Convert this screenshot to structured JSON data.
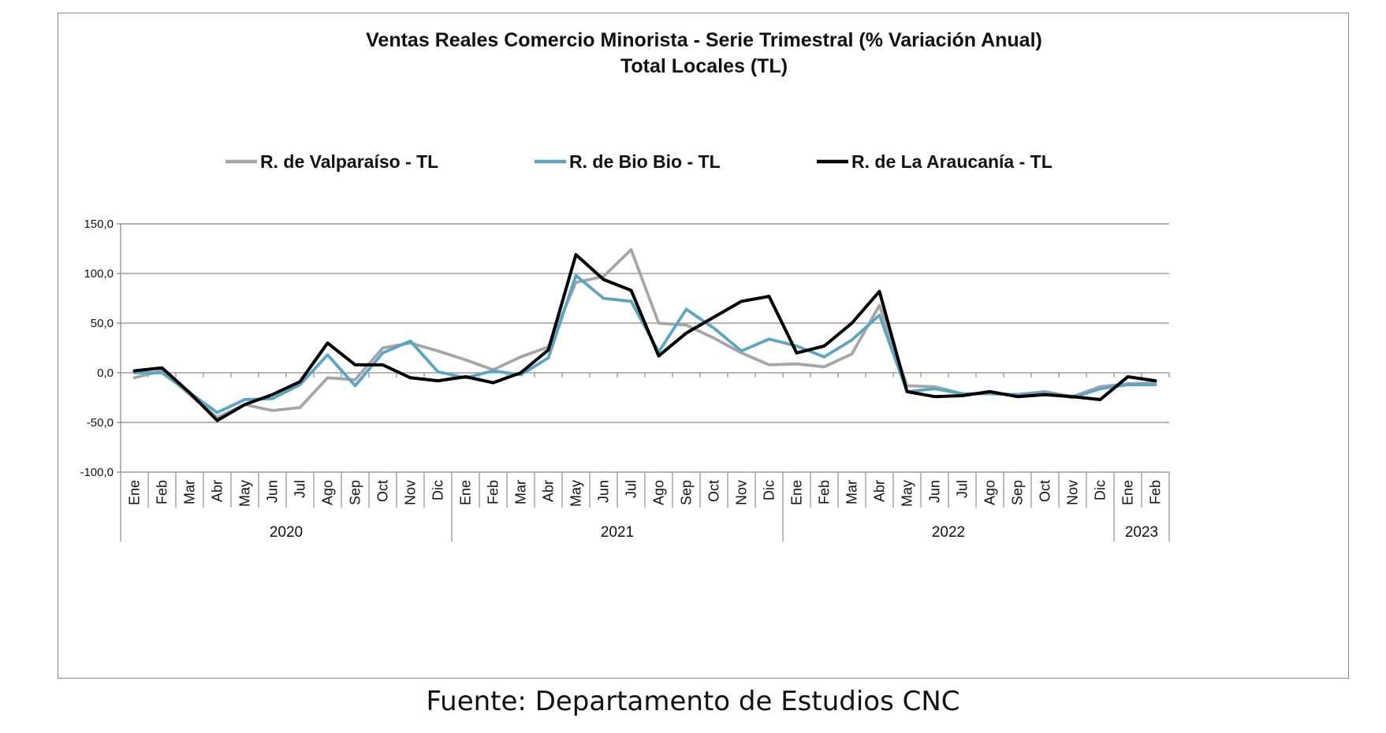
{
  "chart_data": {
    "type": "line",
    "title": "Ventas Reales Comercio Minorista - Serie Trimestral (% Variación Anual)",
    "subtitle": "Total Locales (TL)",
    "legend_position": "top",
    "grid": true,
    "ylim": [
      -100,
      150
    ],
    "yticks": [
      "150,0",
      "100,0",
      "50,0",
      "0,0",
      "-50,0",
      "-100,0"
    ],
    "ytick_values": [
      150,
      100,
      50,
      0,
      -50,
      -100
    ],
    "x": [
      "Ene",
      "Feb",
      "Mar",
      "Abr",
      "May",
      "Jun",
      "Jul",
      "Ago",
      "Sep",
      "Oct",
      "Nov",
      "Dic",
      "Ene",
      "Feb",
      "Mar",
      "Abr",
      "May",
      "Jun",
      "Jul",
      "Ago",
      "Sep",
      "Oct",
      "Nov",
      "Dic",
      "Ene",
      "Feb",
      "Mar",
      "Abr",
      "May",
      "Jun",
      "Jul",
      "Ago",
      "Sep",
      "Oct",
      "Nov",
      "Dic",
      "Ene",
      "Feb"
    ],
    "years": [
      {
        "label": "2020",
        "months": 12
      },
      {
        "label": "2021",
        "months": 12
      },
      {
        "label": "2022",
        "months": 12
      },
      {
        "label": "2023",
        "months": 2
      }
    ],
    "series": [
      {
        "name": "R. de Valparaíso - TL",
        "color": "#a6a6a6",
        "values": [
          -5,
          2,
          -22,
          -45,
          -32,
          -38,
          -35,
          -5,
          -7,
          25,
          30,
          22,
          13,
          3,
          16,
          26,
          91,
          97,
          124,
          50,
          48,
          35,
          20,
          8,
          9,
          6,
          19,
          68,
          -13,
          -14,
          -21,
          -21,
          -22,
          -19,
          -24,
          -14,
          -11,
          -10
        ]
      },
      {
        "name": "R. de Bio Bio - TL",
        "color": "#5aa5c4",
        "values": [
          0,
          0,
          -20,
          -40,
          -27,
          -26,
          -12,
          18,
          -13,
          20,
          32,
          1,
          -5,
          2,
          -2,
          15,
          98,
          75,
          72,
          21,
          64,
          45,
          22,
          34,
          27,
          16,
          33,
          58,
          -19,
          -16,
          -21,
          -21,
          -22,
          -20,
          -25,
          -16,
          -12,
          -12
        ]
      },
      {
        "name": "R. de La Araucanía - TL",
        "color": "#000000",
        "values": [
          2,
          5,
          -20,
          -48,
          -32,
          -22,
          -9,
          30,
          8,
          8,
          -5,
          -8,
          -4,
          -10,
          0,
          23,
          119,
          94,
          83,
          17,
          40,
          56,
          72,
          77,
          20,
          27,
          50,
          82,
          -19,
          -24,
          -23,
          -19,
          -24,
          -22,
          -24,
          -27,
          -4,
          -8
        ]
      }
    ]
  },
  "footer": {
    "source": "Fuente: Departamento de Estudios CNC"
  }
}
